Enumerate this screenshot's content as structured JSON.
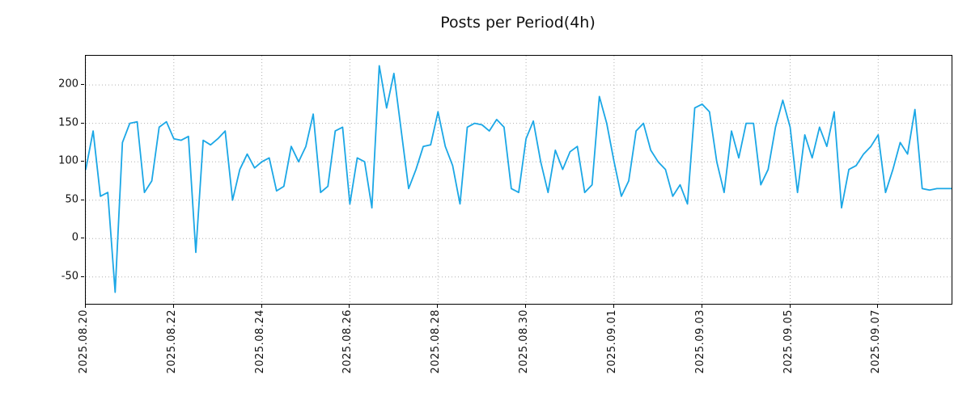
{
  "title": "Posts per Period(4h)",
  "chart_data": {
    "type": "line",
    "title": "Posts per Period(4h)",
    "period_hours": 4,
    "line_color": "#1ba7e6",
    "grid": "dotted",
    "legend": "none",
    "ylim": [
      -85,
      238
    ],
    "yticks": [
      200,
      150,
      100,
      50,
      0,
      -50
    ],
    "xtick_labels": [
      "2025.08.20",
      "2025.08.22",
      "2025.08.24",
      "2025.08.26",
      "2025.08.28",
      "2025.08.30",
      "2025.09.01",
      "2025.09.03",
      "2025.09.05",
      "2025.09.07"
    ],
    "xtick_indices": [
      0,
      12,
      24,
      36,
      48,
      60,
      72,
      84,
      96,
      108
    ],
    "x_start": "2025.08.20",
    "values": [
      90,
      140,
      55,
      60,
      -70,
      125,
      150,
      152,
      60,
      75,
      145,
      152,
      130,
      128,
      133,
      -18,
      128,
      122,
      130,
      140,
      50,
      90,
      110,
      92,
      100,
      105,
      62,
      68,
      120,
      100,
      120,
      162,
      60,
      68,
      140,
      145,
      45,
      105,
      100,
      40,
      225,
      170,
      215,
      140,
      65,
      90,
      120,
      122,
      165,
      120,
      95,
      45,
      145,
      150,
      148,
      140,
      155,
      145,
      65,
      60,
      130,
      153,
      100,
      60,
      115,
      90,
      113,
      120,
      60,
      70,
      185,
      150,
      100,
      55,
      75,
      140,
      150,
      115,
      100,
      90,
      55,
      70,
      45,
      170,
      175,
      165,
      100,
      60,
      140,
      105,
      150,
      150,
      70,
      90,
      145,
      180,
      145,
      60,
      135,
      105,
      145,
      120,
      165,
      40,
      90,
      95,
      110,
      120,
      135,
      60,
      90,
      125,
      110,
      168,
      65,
      63,
      65,
      65,
      65
    ]
  }
}
